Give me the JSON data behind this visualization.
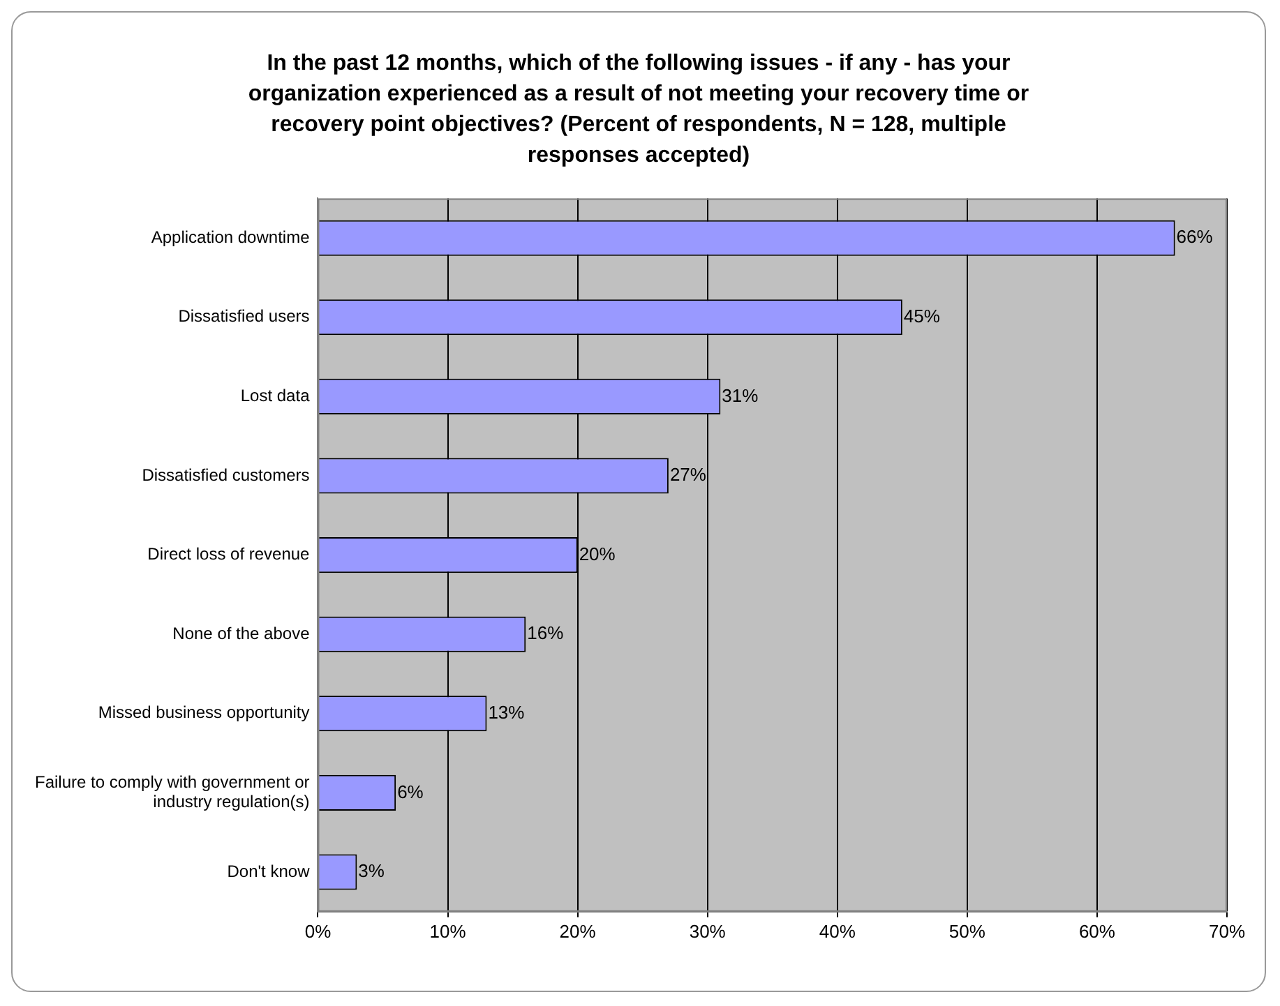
{
  "chart_data": {
    "type": "bar",
    "orientation": "horizontal",
    "title": "In the past 12 months, which of the following issues - if any - has your organization experienced as a result of not meeting your recovery time or recovery point objectives? (Percent of respondents, N = 128, multiple responses accepted)",
    "categories": [
      "Application downtime",
      "Dissatisfied users",
      "Lost data",
      "Dissatisfied customers",
      "Direct loss of revenue",
      "None of the above",
      "Missed business opportunity",
      "Failure to comply with government or industry regulation(s)",
      "Don't know"
    ],
    "values": [
      66,
      45,
      31,
      27,
      20,
      16,
      13,
      6,
      3
    ],
    "value_labels": [
      "66%",
      "45%",
      "31%",
      "27%",
      "20%",
      "16%",
      "13%",
      "6%",
      "3%"
    ],
    "color": "#9999ff",
    "xlim": [
      0,
      70
    ],
    "xticks": [
      {
        "value": 0,
        "label": "0%"
      },
      {
        "value": 10,
        "label": "10%"
      },
      {
        "value": 20,
        "label": "20%"
      },
      {
        "value": 30,
        "label": "30%"
      },
      {
        "value": 40,
        "label": "40%"
      },
      {
        "value": 50,
        "label": "50%"
      },
      {
        "value": 60,
        "label": "60%"
      },
      {
        "value": 70,
        "label": "70%"
      }
    ],
    "grid": "x",
    "legend": false
  }
}
